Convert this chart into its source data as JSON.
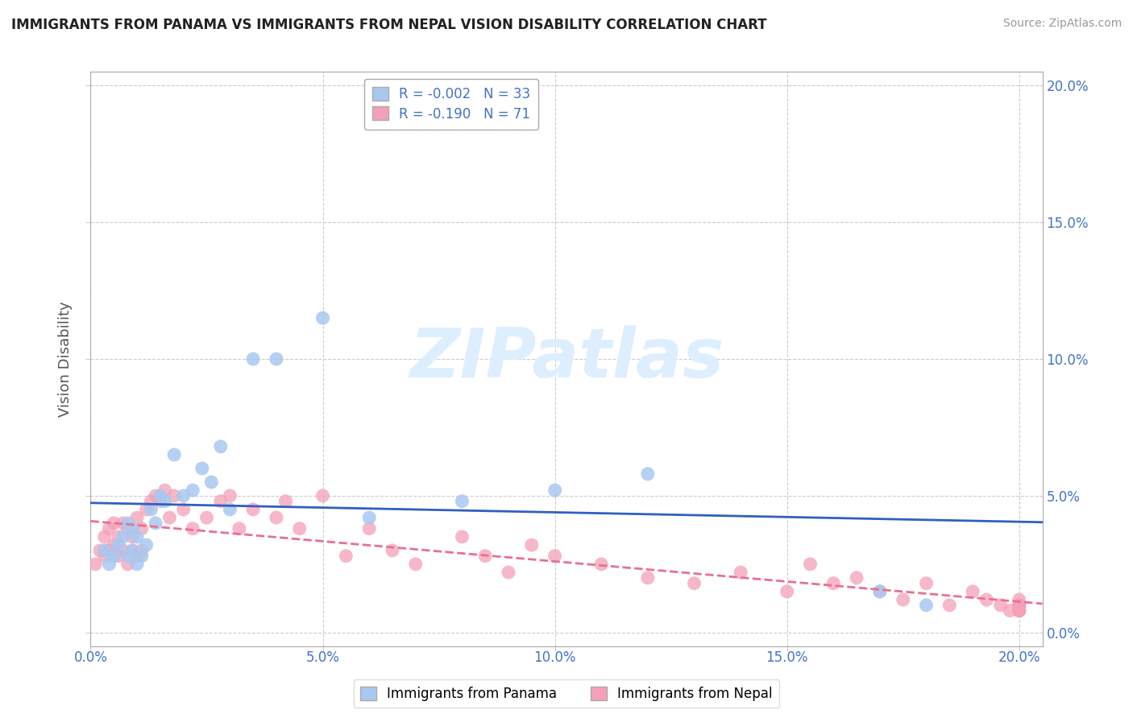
{
  "title": "IMMIGRANTS FROM PANAMA VS IMMIGRANTS FROM NEPAL VISION DISABILITY CORRELATION CHART",
  "source": "Source: ZipAtlas.com",
  "ylabel": "Vision Disability",
  "xlim": [
    0.0,
    0.205
  ],
  "ylim": [
    -0.005,
    0.205
  ],
  "xticks": [
    0.0,
    0.05,
    0.1,
    0.15,
    0.2
  ],
  "yticks": [
    0.0,
    0.05,
    0.1,
    0.15,
    0.2
  ],
  "legend_r_panama": "-0.002",
  "legend_n_panama": "33",
  "legend_r_nepal": "-0.190",
  "legend_n_nepal": "71",
  "panama_color": "#a8c8f0",
  "nepal_color": "#f4a0b8",
  "panama_line_color": "#3060c0",
  "nepal_line_color": "#e87090",
  "watermark_color": "#ddeeff",
  "title_color": "#222222",
  "tick_color": "#4472c4",
  "panama_x": [
    0.003,
    0.004,
    0.005,
    0.006,
    0.007,
    0.008,
    0.008,
    0.009,
    0.009,
    0.01,
    0.01,
    0.011,
    0.012,
    0.013,
    0.014,
    0.015,
    0.016,
    0.018,
    0.02,
    0.022,
    0.024,
    0.026,
    0.028,
    0.03,
    0.035,
    0.04,
    0.05,
    0.06,
    0.08,
    0.1,
    0.12,
    0.17,
    0.18
  ],
  "panama_y": [
    0.03,
    0.025,
    0.028,
    0.032,
    0.035,
    0.028,
    0.04,
    0.03,
    0.038,
    0.025,
    0.035,
    0.028,
    0.032,
    0.045,
    0.04,
    0.05,
    0.048,
    0.065,
    0.05,
    0.052,
    0.06,
    0.055,
    0.068,
    0.045,
    0.1,
    0.1,
    0.115,
    0.042,
    0.048,
    0.052,
    0.058,
    0.015,
    0.01
  ],
  "nepal_x": [
    0.001,
    0.002,
    0.003,
    0.003,
    0.004,
    0.004,
    0.005,
    0.005,
    0.006,
    0.006,
    0.007,
    0.007,
    0.008,
    0.008,
    0.009,
    0.009,
    0.01,
    0.01,
    0.011,
    0.011,
    0.012,
    0.013,
    0.014,
    0.015,
    0.016,
    0.017,
    0.018,
    0.02,
    0.022,
    0.025,
    0.028,
    0.03,
    0.032,
    0.035,
    0.04,
    0.042,
    0.045,
    0.05,
    0.055,
    0.06,
    0.065,
    0.07,
    0.08,
    0.085,
    0.09,
    0.095,
    0.1,
    0.11,
    0.12,
    0.13,
    0.14,
    0.15,
    0.155,
    0.16,
    0.165,
    0.17,
    0.175,
    0.18,
    0.185,
    0.19,
    0.193,
    0.196,
    0.198,
    0.2,
    0.2,
    0.2,
    0.2,
    0.2,
    0.2,
    0.2,
    0.2
  ],
  "nepal_y": [
    0.025,
    0.03,
    0.028,
    0.035,
    0.03,
    0.038,
    0.032,
    0.04,
    0.028,
    0.035,
    0.03,
    0.04,
    0.025,
    0.038,
    0.03,
    0.035,
    0.028,
    0.042,
    0.03,
    0.038,
    0.045,
    0.048,
    0.05,
    0.048,
    0.052,
    0.042,
    0.05,
    0.045,
    0.038,
    0.042,
    0.048,
    0.05,
    0.038,
    0.045,
    0.042,
    0.048,
    0.038,
    0.05,
    0.028,
    0.038,
    0.03,
    0.025,
    0.035,
    0.028,
    0.022,
    0.032,
    0.028,
    0.025,
    0.02,
    0.018,
    0.022,
    0.015,
    0.025,
    0.018,
    0.02,
    0.015,
    0.012,
    0.018,
    0.01,
    0.015,
    0.012,
    0.01,
    0.008,
    0.012,
    0.008,
    0.01,
    0.008,
    0.01,
    0.008,
    0.01,
    0.008
  ]
}
